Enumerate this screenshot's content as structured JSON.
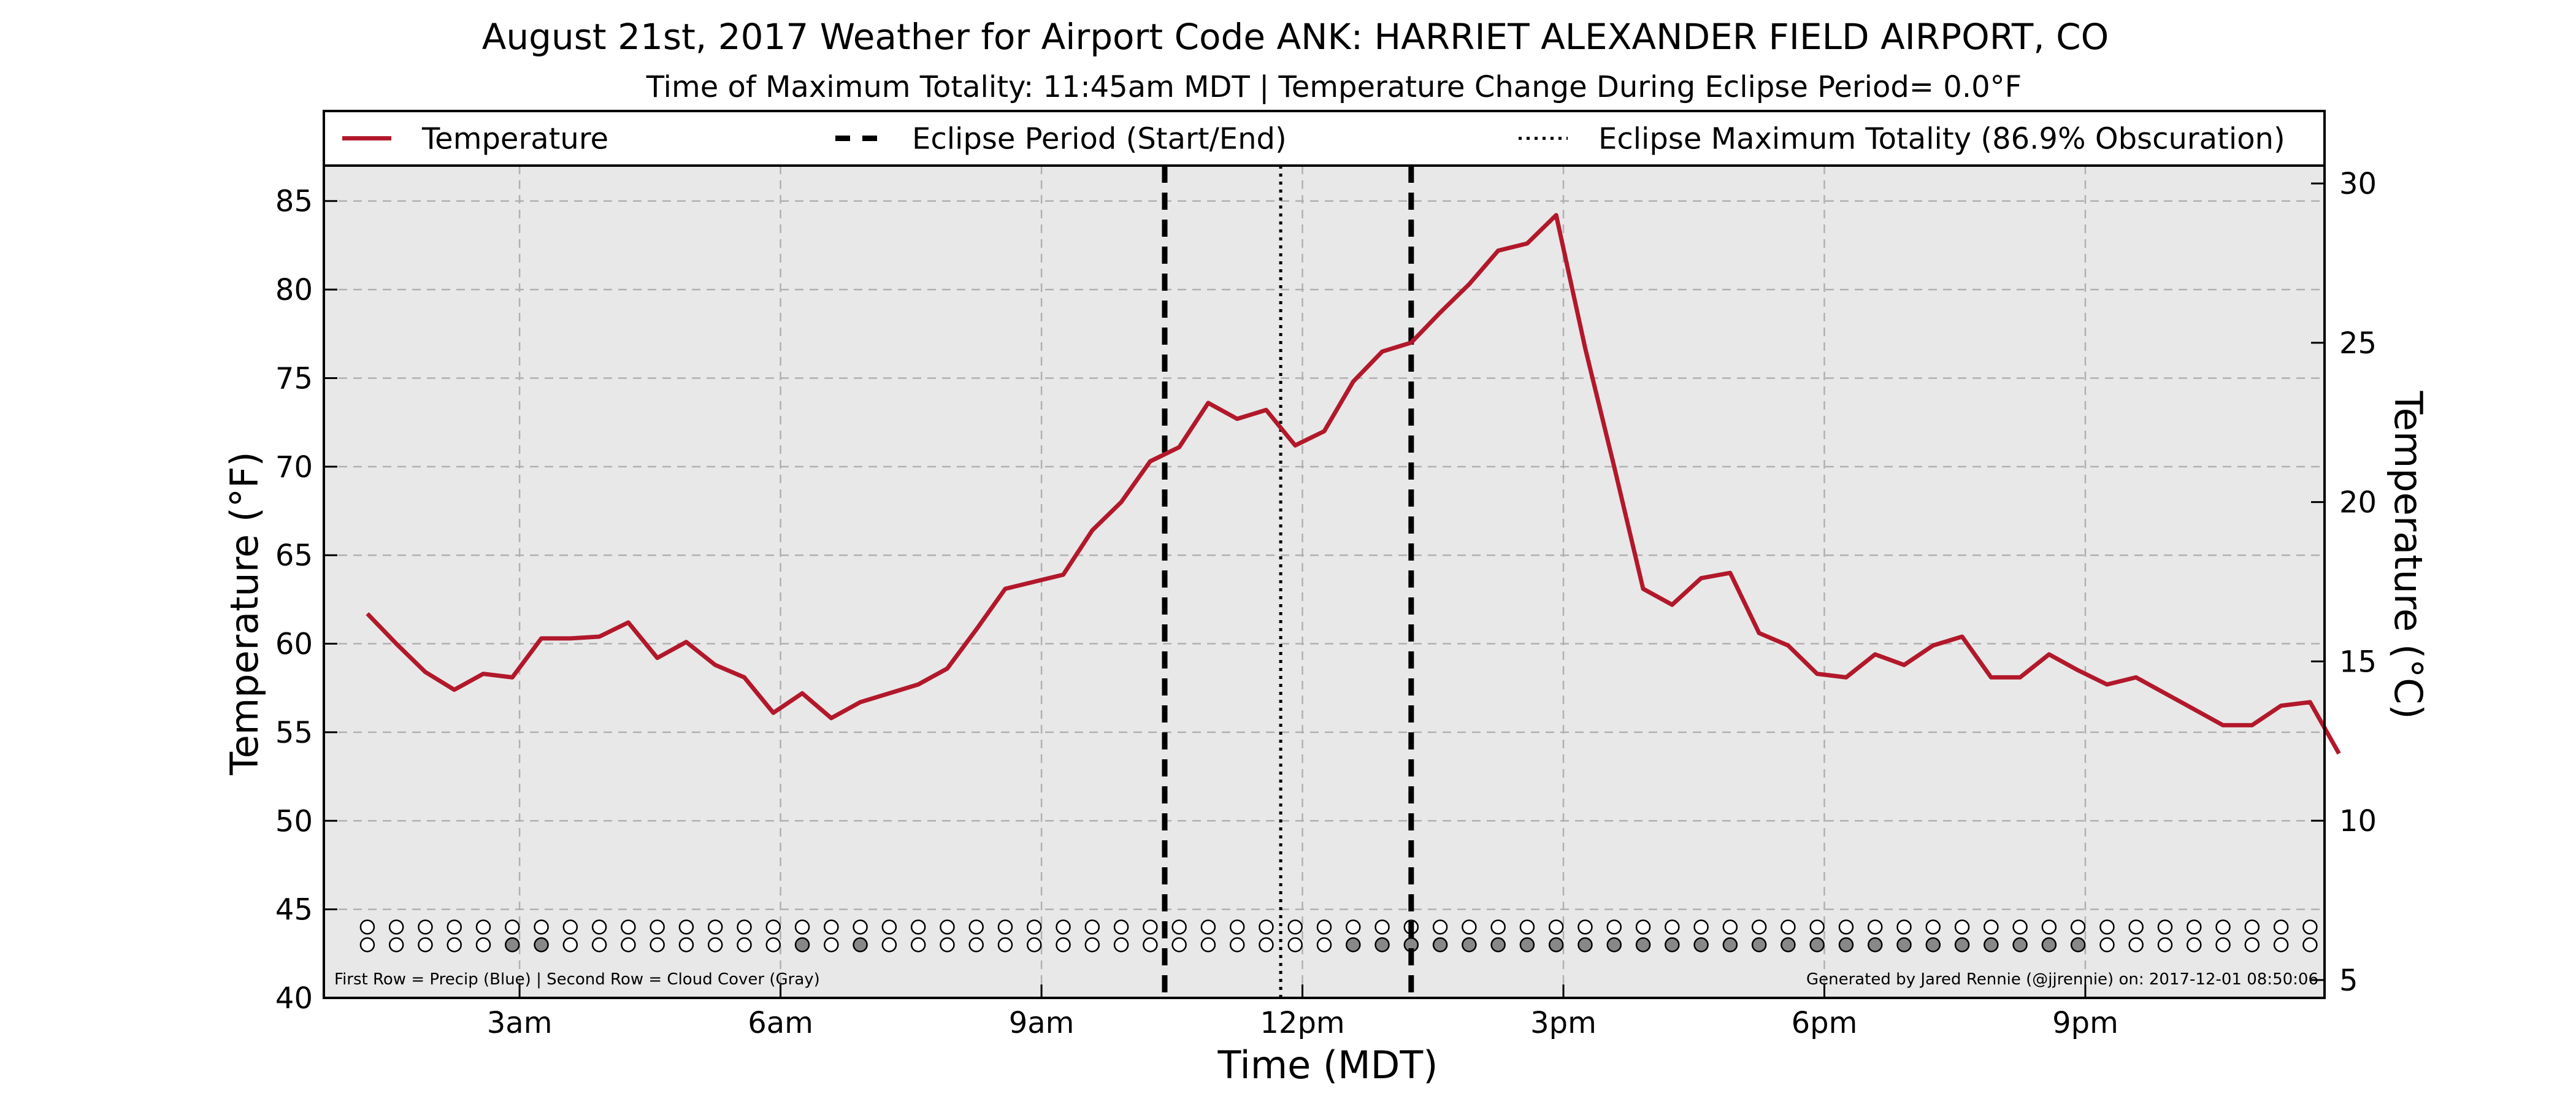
{
  "chart_data": {
    "type": "line",
    "title": "August 21st, 2017 Weather for Airport Code ANK: HARRIET ALEXANDER FIELD AIRPORT, CO",
    "subtitle": "Time of Maximum Totality: 11:45am MDT | Temperature Change During Eclipse Period= 0.0°F",
    "xlabel": "Time (MDT)",
    "ylabel": "Temperature (°F)",
    "ylabel_right": "Temperature (°C)",
    "xlim": [
      "00:45",
      "23:45"
    ],
    "ylim": [
      40,
      87
    ],
    "ylim_right_celsius": [
      4.44,
      30.56
    ],
    "x_ticks": [
      {
        "time": "03:00",
        "label": "3am"
      },
      {
        "time": "06:00",
        "label": "6am"
      },
      {
        "time": "09:00",
        "label": "9am"
      },
      {
        "time": "12:00",
        "label": "12pm"
      },
      {
        "time": "15:00",
        "label": "3pm"
      },
      {
        "time": "18:00",
        "label": "6pm"
      },
      {
        "time": "21:00",
        "label": "9pm"
      }
    ],
    "y_ticks": [
      "40",
      "45",
      "50",
      "55",
      "60",
      "65",
      "70",
      "75",
      "80",
      "85"
    ],
    "y_ticks_right": [
      "5",
      "10",
      "15",
      "20",
      "25",
      "30"
    ],
    "grid": true,
    "legend_placement": "top",
    "legend": {
      "temperature": "Temperature",
      "eclipse_period": "Eclipse Period (Start/End)",
      "max_totality": "Eclipse Maximum Totality (86.9% Obscuration)"
    },
    "series": [
      {
        "name": "Temperature",
        "color": "#b2182b",
        "points": [
          [
            "01:15",
            61.7
          ],
          [
            "01:35",
            60.0
          ],
          [
            "01:55",
            58.4
          ],
          [
            "02:15",
            57.4
          ],
          [
            "02:35",
            58.3
          ],
          [
            "02:55",
            58.1
          ],
          [
            "03:15",
            60.3
          ],
          [
            "03:35",
            60.3
          ],
          [
            "03:55",
            60.4
          ],
          [
            "04:15",
            61.2
          ],
          [
            "04:35",
            59.2
          ],
          [
            "04:55",
            60.1
          ],
          [
            "05:15",
            58.8
          ],
          [
            "05:35",
            58.1
          ],
          [
            "05:55",
            56.1
          ],
          [
            "06:15",
            57.2
          ],
          [
            "06:35",
            55.8
          ],
          [
            "06:55",
            56.7
          ],
          [
            "07:35",
            57.7
          ],
          [
            "07:55",
            58.6
          ],
          [
            "08:15",
            60.8
          ],
          [
            "08:35",
            63.1
          ],
          [
            "09:15",
            63.9
          ],
          [
            "09:35",
            66.4
          ],
          [
            "09:55",
            68.0
          ],
          [
            "10:15",
            70.3
          ],
          [
            "10:35",
            71.1
          ],
          [
            "10:55",
            73.6
          ],
          [
            "11:15",
            72.7
          ],
          [
            "11:35",
            73.2
          ],
          [
            "11:55",
            71.2
          ],
          [
            "12:15",
            72.0
          ],
          [
            "12:35",
            74.8
          ],
          [
            "12:55",
            76.5
          ],
          [
            "13:15",
            77.0
          ],
          [
            "13:35",
            78.7
          ],
          [
            "13:55",
            80.3
          ],
          [
            "14:15",
            82.2
          ],
          [
            "14:35",
            82.6
          ],
          [
            "14:55",
            84.2
          ],
          [
            "15:15",
            76.7
          ],
          [
            "15:35",
            70.0
          ],
          [
            "15:55",
            63.1
          ],
          [
            "16:15",
            62.2
          ],
          [
            "16:35",
            63.7
          ],
          [
            "16:55",
            64.0
          ],
          [
            "17:15",
            60.6
          ],
          [
            "17:35",
            59.9
          ],
          [
            "17:55",
            58.3
          ],
          [
            "18:15",
            58.1
          ],
          [
            "18:35",
            59.4
          ],
          [
            "18:55",
            58.8
          ],
          [
            "19:15",
            59.9
          ],
          [
            "19:35",
            60.4
          ],
          [
            "19:55",
            58.1
          ],
          [
            "20:15",
            58.1
          ],
          [
            "20:35",
            59.4
          ],
          [
            "20:55",
            58.5
          ],
          [
            "21:15",
            57.7
          ],
          [
            "21:35",
            58.1
          ],
          [
            "21:55",
            57.2
          ],
          [
            "22:15",
            56.3
          ],
          [
            "22:35",
            55.4
          ],
          [
            "22:55",
            55.4
          ],
          [
            "23:15",
            56.5
          ],
          [
            "23:35",
            56.7
          ],
          [
            "23:55",
            53.8
          ]
        ]
      }
    ],
    "eclipse_start": "10:25",
    "eclipse_end": "13:15",
    "max_totality": "11:45",
    "indicator_rows": {
      "start": "01:15",
      "interval_minutes": 20,
      "precip_y": 44.0,
      "cloud_y": 43.0,
      "precip_filled": [],
      "cloud_filled_times": [
        "02:55",
        "03:15",
        "06:15",
        "06:55",
        "12:35",
        "12:55",
        "13:15"
      ],
      "cloud_filled_range": [
        "13:35",
        "20:55"
      ]
    },
    "colors": {
      "plot_background": "#e8e8e8",
      "grid": "#b0b0b0",
      "line": "#b2182b",
      "cloud_fill": "#888888",
      "precip_fill": "#1f5fbf"
    },
    "notes": {
      "left": "First Row = Precip (Blue) | Second Row = Cloud Cover (Gray)",
      "right": "Generated by Jared Rennie (@jjrennie) on: 2017-12-01 08:50:06"
    }
  }
}
